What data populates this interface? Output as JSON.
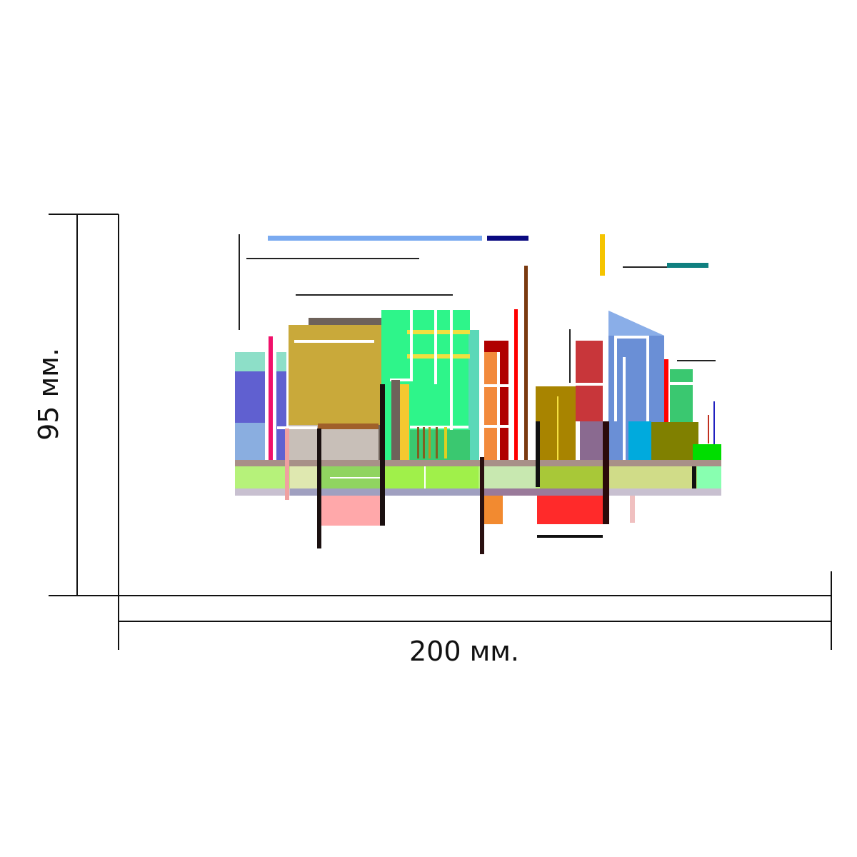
{
  "dimensions": {
    "width_label": "200 мм.",
    "height_label": "95 мм."
  },
  "artwork": {
    "description_style": "abstract geometric cityscape",
    "colors": {
      "mint": "#8ddfc8",
      "indigo": "#6060d0",
      "sky_blue": "#8aaee0",
      "mustard": "#c9a93a",
      "taupe": "#6e625a",
      "spring_green": "#2ef58a",
      "orange": "#f28a3c",
      "dark_red": "#b00000",
      "red": "#e0202a",
      "olive_gold": "#a88400",
      "brick_red": "#c8363a",
      "cornflower": "#6a8fd6",
      "olive": "#808000",
      "lime_band": "#b6f27a",
      "pink": "#ffa8aa",
      "bright_red": "#ff2a2a"
    }
  }
}
